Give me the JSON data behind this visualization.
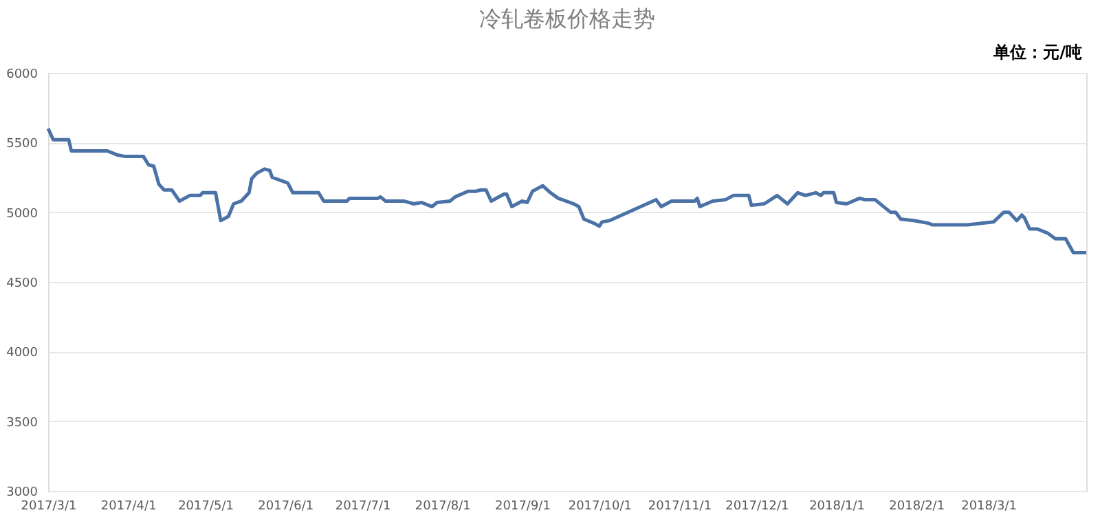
{
  "chart_data": {
    "type": "line",
    "title": "冷轧卷板价格走势",
    "annotations": [
      "单位：元/吨"
    ],
    "x": [
      "2017-03-01",
      "2017-03-03",
      "2017-03-09",
      "2017-03-10",
      "2017-03-24",
      "2017-03-28",
      "2017-03-31",
      "2017-04-07",
      "2017-04-09",
      "2017-04-11",
      "2017-04-13",
      "2017-04-15",
      "2017-04-18",
      "2017-04-21",
      "2017-04-23",
      "2017-04-25",
      "2017-04-29",
      "2017-04-30",
      "2017-05-05",
      "2017-05-07",
      "2017-05-10",
      "2017-05-12",
      "2017-05-15",
      "2017-05-18",
      "2017-05-19",
      "2017-05-21",
      "2017-05-24",
      "2017-05-26",
      "2017-05-27",
      "2017-06-02",
      "2017-06-04",
      "2017-06-14",
      "2017-06-16",
      "2017-06-25",
      "2017-06-26",
      "2017-07-07",
      "2017-07-08",
      "2017-07-10",
      "2017-07-17",
      "2017-07-21",
      "2017-07-24",
      "2017-07-28",
      "2017-07-30",
      "2017-08-04",
      "2017-08-06",
      "2017-08-11",
      "2017-08-14",
      "2017-08-16",
      "2017-08-18",
      "2017-08-20",
      "2017-08-25",
      "2017-08-26",
      "2017-08-28",
      "2017-08-30",
      "2017-09-01",
      "2017-09-03",
      "2017-09-05",
      "2017-09-09",
      "2017-09-12",
      "2017-09-15",
      "2017-09-18",
      "2017-09-21",
      "2017-09-23",
      "2017-09-25",
      "2017-09-29",
      "2017-10-01",
      "2017-10-02",
      "2017-10-05",
      "2017-10-23",
      "2017-10-25",
      "2017-10-29",
      "2017-11-01",
      "2017-11-07",
      "2017-11-08",
      "2017-11-09",
      "2017-11-14",
      "2017-11-19",
      "2017-11-22",
      "2017-11-28",
      "2017-11-29",
      "2017-12-04",
      "2017-12-09",
      "2017-12-13",
      "2017-12-17",
      "2017-12-20",
      "2017-12-24",
      "2017-12-26",
      "2017-12-27",
      "2017-12-31",
      "2018-01-01",
      "2018-01-05",
      "2018-01-10",
      "2018-01-12",
      "2018-01-16",
      "2018-01-22",
      "2018-01-24",
      "2018-01-26",
      "2018-01-31",
      "2018-02-06",
      "2018-02-07",
      "2018-02-21",
      "2018-03-03",
      "2018-03-07",
      "2018-03-09",
      "2018-03-12",
      "2018-03-14",
      "2018-03-15",
      "2018-03-17",
      "2018-03-20",
      "2018-03-24",
      "2018-03-27",
      "2018-03-31",
      "2018-04-03",
      "2018-04-08"
    ],
    "series": [
      {
        "color": "#4a72a6",
        "values": [
          5600,
          5520,
          5520,
          5440,
          5440,
          5410,
          5400,
          5400,
          5340,
          5330,
          5200,
          5160,
          5160,
          5080,
          5100,
          5120,
          5120,
          5140,
          5140,
          4940,
          4970,
          5060,
          5080,
          5140,
          5240,
          5280,
          5310,
          5300,
          5250,
          5210,
          5140,
          5140,
          5080,
          5080,
          5100,
          5100,
          5110,
          5080,
          5080,
          5060,
          5070,
          5040,
          5070,
          5080,
          5110,
          5150,
          5150,
          5160,
          5160,
          5080,
          5130,
          5130,
          5040,
          5060,
          5080,
          5070,
          5150,
          5190,
          5140,
          5100,
          5080,
          5060,
          5040,
          4950,
          4920,
          4900,
          4930,
          4940,
          5090,
          5040,
          5080,
          5080,
          5080,
          5100,
          5040,
          5080,
          5090,
          5120,
          5120,
          5050,
          5060,
          5120,
          5060,
          5140,
          5120,
          5140,
          5120,
          5140,
          5140,
          5070,
          5060,
          5100,
          5090,
          5090,
          5000,
          5000,
          4950,
          4940,
          4920,
          4910,
          4910,
          4930,
          5000,
          5000,
          4940,
          4980,
          4960,
          4880,
          4880,
          4850,
          4810,
          4810,
          4710,
          4710
        ]
      }
    ],
    "xlim": [
      "2017-03-01",
      "2018-04-08"
    ],
    "xticks": [
      {
        "value": "2017-03-01",
        "label": "2017/3/1"
      },
      {
        "value": "2017-04-01",
        "label": "2017/4/1"
      },
      {
        "value": "2017-05-01",
        "label": "2017/5/1"
      },
      {
        "value": "2017-06-01",
        "label": "2017/6/1"
      },
      {
        "value": "2017-07-01",
        "label": "2017/7/1"
      },
      {
        "value": "2017-08-01",
        "label": "2017/8/1"
      },
      {
        "value": "2017-09-01",
        "label": "2017/9/1"
      },
      {
        "value": "2017-10-01",
        "label": "2017/10/1"
      },
      {
        "value": "2017-11-01",
        "label": "2017/11/1"
      },
      {
        "value": "2017-12-01",
        "label": "2017/12/1"
      },
      {
        "value": "2018-01-01",
        "label": "2018/1/1"
      },
      {
        "value": "2018-02-01",
        "label": "2018/2/1"
      },
      {
        "value": "2018-03-01",
        "label": "2018/3/1"
      }
    ],
    "ylim": [
      3000,
      6000
    ],
    "yticks": [
      3000,
      3500,
      4000,
      4500,
      5000,
      5500,
      6000
    ],
    "grid": "y",
    "marker": "none",
    "line_style": "solid"
  }
}
